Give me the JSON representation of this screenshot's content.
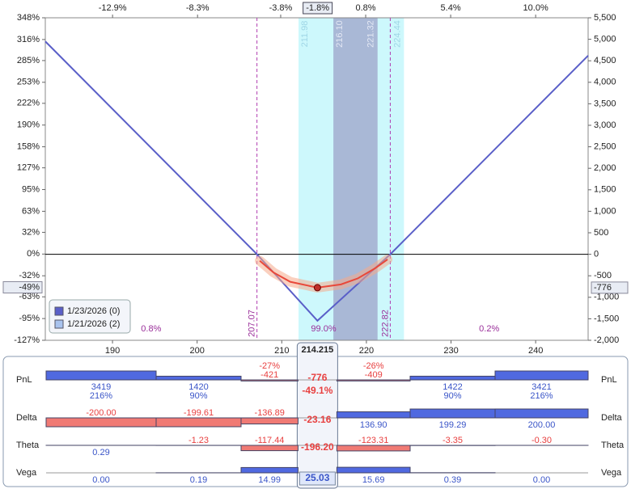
{
  "chart_data": {
    "type": "line",
    "xlim": [
      182.06,
      246.2
    ],
    "xticks": [
      190,
      200,
      210,
      220,
      230,
      240
    ],
    "x2lim": [
      -16.54,
      12.84
    ],
    "x2ticks": [
      {
        "value": -12.9,
        "label": "-12.9%"
      },
      {
        "value": -8.3,
        "label": "-8.3%"
      },
      {
        "value": -3.8,
        "label": "-3.8%"
      },
      {
        "value": 0.8,
        "label": "0.8%"
      },
      {
        "value": 5.4,
        "label": "5.4%"
      },
      {
        "value": 10.0,
        "label": "10.0%"
      }
    ],
    "ylim": [
      -2000,
      5500
    ],
    "yticks": [
      {
        "value": 5500,
        "label": "5,500"
      },
      {
        "value": 5000,
        "label": "5,000"
      },
      {
        "value": 4500,
        "label": "4,500"
      },
      {
        "value": 4000,
        "label": "4,000"
      },
      {
        "value": 3500,
        "label": "3,500"
      },
      {
        "value": 3000,
        "label": "3,000"
      },
      {
        "value": 2500,
        "label": "2,500"
      },
      {
        "value": 2000,
        "label": "2,000"
      },
      {
        "value": 1500,
        "label": "1,500"
      },
      {
        "value": 1000,
        "label": "1,000"
      },
      500,
      0,
      -500,
      {
        "value": -1000,
        "label": "-1,000"
      },
      {
        "value": -1500,
        "label": "-1,500"
      },
      {
        "value": -2000,
        "label": "-2,000"
      }
    ],
    "y2lim": [
      -127,
      348
    ],
    "y2ticks": [
      {
        "value": 348,
        "label": "348%"
      },
      {
        "value": 316,
        "label": "316%"
      },
      {
        "value": 285,
        "label": "285%"
      },
      {
        "value": 253,
        "label": "253%"
      },
      {
        "value": 222,
        "label": "222%"
      },
      {
        "value": 190,
        "label": "190%"
      },
      {
        "value": 158,
        "label": "158%"
      },
      {
        "value": 127,
        "label": "127%"
      },
      {
        "value": 95,
        "label": "95%"
      },
      {
        "value": 63,
        "label": "63%"
      },
      {
        "value": 32,
        "label": "32%"
      },
      {
        "value": 0,
        "label": "0%"
      },
      {
        "value": -32,
        "label": "-32%"
      },
      {
        "value": -63,
        "label": "-63%"
      },
      {
        "value": -95,
        "label": "-95%"
      },
      {
        "value": -127,
        "label": "-127%"
      }
    ],
    "series": [
      {
        "name": "1/23/2026 (0)",
        "color": "#5a5fc8",
        "x": [
          182.06,
          207.07,
          214.215,
          222.82,
          246.2
        ],
        "values": [
          4950,
          0,
          -1545,
          0,
          4620
        ]
      },
      {
        "name": "1/21/2026 (2)",
        "color": "#e8483a",
        "legend_color": "#a9c3ee",
        "x": [
          207.4,
          209,
          211,
          214.215,
          217,
          219,
          221,
          222.5
        ],
        "values": [
          -150,
          -420,
          -640,
          -776,
          -700,
          -560,
          -330,
          -120
        ]
      }
    ],
    "breakevens": [
      207.07,
      222.82
    ],
    "bands": [
      {
        "from": 211.98,
        "to": 224.44,
        "color": "#cdf8fc"
      },
      {
        "from": {
          "value": 216.1,
          "label": "216.10"
        },
        "to": 221.32,
        "color": "#a9b8d6"
      }
    ],
    "probabilities": [
      {
        "value": 0.8,
        "label": "0.8%"
      },
      {
        "value": 99.0,
        "label": "99.0%"
      },
      {
        "value": 0.2,
        "label": "0.2%"
      }
    ],
    "cursor": {
      "x": 214.215,
      "y": -776,
      "x2": {
        "value": -1.8,
        "label": "-1.8%"
      },
      "y2": {
        "value": -49,
        "label": "-49%"
      }
    },
    "legend": "lower-left"
  },
  "greeks": {
    "rows": [
      {
        "name": "PnL",
        "values": [
          3419,
          1420,
          -421,
          -776,
          -409,
          1422,
          3421
        ],
        "percents": [
          216,
          90,
          -27,
          -49.1,
          -26,
          90,
          216
        ],
        "percent_labels": [
          "216%",
          "90%",
          "-27%",
          "-49.1%",
          "-26%",
          "90%",
          "216%"
        ]
      },
      {
        "name": "Delta",
        "values": [
          -200,
          -199.61,
          -136.89,
          -23.16,
          136.9,
          199.29,
          200
        ],
        "value_labels": [
          "-200.00",
          "-199.61",
          "-136.89",
          "-23.16",
          "136.90",
          "199.29",
          "200.00"
        ]
      },
      {
        "name": "Theta",
        "values": [
          0.29,
          -1.23,
          -117.44,
          -196.2,
          -123.31,
          -3.35,
          -0.3
        ],
        "value_labels": [
          "0.29",
          "-1.23",
          "-117.44",
          "-196.20",
          "-123.31",
          "-3.35",
          "-0.30"
        ]
      },
      {
        "name": "Vega",
        "values": [
          0,
          0.19,
          14.99,
          25.03,
          15.69,
          0.39,
          0
        ],
        "value_labels": [
          "0.00",
          "0.19",
          "14.99",
          "25.03",
          "15.69",
          "0.39",
          "0.00"
        ]
      }
    ]
  }
}
